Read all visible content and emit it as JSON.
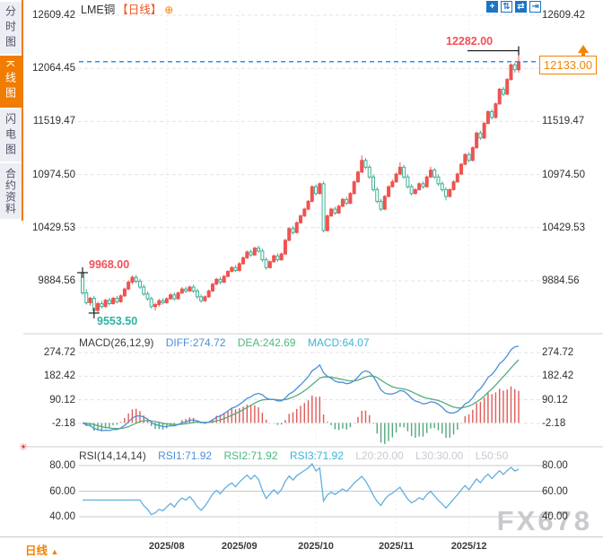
{
  "sidebar": {
    "tabs": [
      {
        "label": "分时图",
        "active": false
      },
      {
        "label": "K线图",
        "active": true
      },
      {
        "label": "闪电图",
        "active": false
      },
      {
        "label": "合约资料",
        "active": false
      }
    ]
  },
  "header": {
    "symbol": "LME铜",
    "period_tag": "【日线】",
    "add_glyph": "⊕"
  },
  "toolbar": {
    "icons": [
      {
        "name": "pan-crosshair-icon",
        "glyph": "+",
        "filled": true
      },
      {
        "name": "zoom-y-axis-icon",
        "glyph": "⇅",
        "filled": false
      },
      {
        "name": "zoom-x-axis-icon",
        "glyph": "⇄",
        "filled": true
      },
      {
        "name": "exit-restore-icon",
        "glyph": "⇥",
        "filled": false
      }
    ]
  },
  "price_pane": {
    "high_label": "12282.00",
    "open_label": "9968.00",
    "low_label": "9553.50",
    "current_label": "12133.00",
    "axis_labels": [
      "12609.42",
      "12064.45",
      "11519.47",
      "10974.50",
      "10429.53",
      "9884.56"
    ]
  },
  "macd_pane": {
    "name": "MACD(26,12,9)",
    "diff_label": "DIFF:274.72",
    "dea_label": "DEA:242.69",
    "macd_label": "MACD:64.07",
    "axis_labels": [
      "274.72",
      "182.42",
      "90.12",
      "-2.18"
    ]
  },
  "rsi_pane": {
    "name": "RSI(14,14,14)",
    "rsi1_label": "RSI1:71.92",
    "rsi2_label": "RSI2:71.92",
    "rsi3_label": "RSI3:71.92",
    "l20_label": "L20:20.00",
    "l30_label": "L30:30.00",
    "l50_label": "L50:50",
    "settings_glyph": "☀",
    "axis_labels": [
      "80.00",
      "60.00",
      "40.00"
    ]
  },
  "bottom_bar": {
    "period_label": "日线",
    "period_arrow": "▲"
  },
  "watermark": "FX678",
  "colors": {
    "accent_orange": "#f28500",
    "candle_up": "#ef5350",
    "candle_down": "#3fb095",
    "diff_line": "#4a8fd9",
    "dea_line": "#56ab7d",
    "hist_up": "#e05a56",
    "hist_down": "#52a87e",
    "rsi_line": "#5fb0e0",
    "current_line": "#2a8ff0",
    "grid": "#e3e3e3",
    "label_red": "#f1505a",
    "label_teal": "#2db3a0"
  },
  "chart_data": {
    "type": "candlestick",
    "title": "LME铜 日线",
    "interval": "daily",
    "x_tick_labels": [
      "2025/08",
      "2025/09",
      "2025/10",
      "2025/11",
      "2025/12"
    ],
    "x_tick_indices": [
      22,
      41,
      61,
      82,
      101
    ],
    "price_axis_ticks": [
      12609.42,
      12064.45,
      11519.47,
      10974.5,
      10429.53,
      9884.56
    ],
    "first_open": 9968.0,
    "lowest_low": 9553.5,
    "highest_high": 12282.0,
    "last_close": 12133.0,
    "candles_format": [
      "open",
      "high",
      "low",
      "close"
    ],
    "candles": [
      [
        9968,
        9990,
        9740,
        9760
      ],
      [
        9760,
        9800,
        9640,
        9660
      ],
      [
        9660,
        9720,
        9630,
        9705
      ],
      [
        9705,
        9730,
        9553.5,
        9580
      ],
      [
        9580,
        9670,
        9560,
        9650
      ],
      [
        9650,
        9680,
        9600,
        9620
      ],
      [
        9620,
        9700,
        9610,
        9685
      ],
      [
        9685,
        9710,
        9630,
        9650
      ],
      [
        9650,
        9720,
        9640,
        9705
      ],
      [
        9705,
        9730,
        9650,
        9670
      ],
      [
        9670,
        9745,
        9660,
        9730
      ],
      [
        9730,
        9815,
        9720,
        9800
      ],
      [
        9800,
        9890,
        9790,
        9870
      ],
      [
        9870,
        9940,
        9850,
        9920
      ],
      [
        9920,
        9945,
        9860,
        9880
      ],
      [
        9880,
        9905,
        9800,
        9820
      ],
      [
        9820,
        9845,
        9730,
        9750
      ],
      [
        9750,
        9775,
        9680,
        9700
      ],
      [
        9700,
        9720,
        9600,
        9620
      ],
      [
        9620,
        9660,
        9580,
        9640
      ],
      [
        9640,
        9700,
        9620,
        9680
      ],
      [
        9680,
        9705,
        9640,
        9660
      ],
      [
        9660,
        9715,
        9650,
        9700
      ],
      [
        9700,
        9760,
        9690,
        9740
      ],
      [
        9740,
        9765,
        9680,
        9700
      ],
      [
        9700,
        9775,
        9690,
        9760
      ],
      [
        9760,
        9820,
        9750,
        9800
      ],
      [
        9800,
        9825,
        9760,
        9780
      ],
      [
        9780,
        9835,
        9770,
        9820
      ],
      [
        9820,
        9845,
        9760,
        9780
      ],
      [
        9780,
        9805,
        9700,
        9720
      ],
      [
        9720,
        9745,
        9660,
        9680
      ],
      [
        9680,
        9735,
        9670,
        9720
      ],
      [
        9720,
        9795,
        9710,
        9780
      ],
      [
        9780,
        9865,
        9770,
        9850
      ],
      [
        9850,
        9915,
        9840,
        9900
      ],
      [
        9900,
        9925,
        9850,
        9870
      ],
      [
        9870,
        9945,
        9860,
        9930
      ],
      [
        9930,
        9995,
        9920,
        9980
      ],
      [
        9980,
        10035,
        9970,
        10020
      ],
      [
        10020,
        10045,
        9975,
        9990
      ],
      [
        9990,
        10075,
        9980,
        10060
      ],
      [
        10060,
        10135,
        10050,
        10120
      ],
      [
        10120,
        10195,
        10110,
        10180
      ],
      [
        10180,
        10205,
        10130,
        10150
      ],
      [
        10150,
        10235,
        10140,
        10220
      ],
      [
        10220,
        10245,
        10170,
        10190
      ],
      [
        10190,
        10215,
        10080,
        10100
      ],
      [
        10100,
        10125,
        10000,
        10020
      ],
      [
        10020,
        10095,
        10010,
        10080
      ],
      [
        10080,
        10155,
        10070,
        10140
      ],
      [
        10140,
        10165,
        10080,
        10100
      ],
      [
        10100,
        10175,
        10090,
        10160
      ],
      [
        10160,
        10315,
        10150,
        10300
      ],
      [
        10300,
        10435,
        10290,
        10420
      ],
      [
        10420,
        10445,
        10360,
        10380
      ],
      [
        10380,
        10495,
        10370,
        10480
      ],
      [
        10480,
        10565,
        10470,
        10550
      ],
      [
        10550,
        10635,
        10540,
        10620
      ],
      [
        10620,
        10715,
        10610,
        10700
      ],
      [
        10700,
        10865,
        10690,
        10850
      ],
      [
        10850,
        10875,
        10760,
        10780
      ],
      [
        10780,
        10895,
        10770,
        10880
      ],
      [
        10880,
        10905,
        10380,
        10400
      ],
      [
        10400,
        10565,
        10390,
        10550
      ],
      [
        10550,
        10635,
        10540,
        10620
      ],
      [
        10620,
        10645,
        10560,
        10580
      ],
      [
        10580,
        10665,
        10570,
        10650
      ],
      [
        10650,
        10735,
        10640,
        10720
      ],
      [
        10720,
        10745,
        10660,
        10680
      ],
      [
        10680,
        10795,
        10670,
        10780
      ],
      [
        10780,
        10915,
        10770,
        10900
      ],
      [
        10900,
        11015,
        10890,
        11000
      ],
      [
        11000,
        11170,
        10990,
        11120
      ],
      [
        11120,
        11145,
        11030,
        11050
      ],
      [
        11050,
        11075,
        10930,
        10950
      ],
      [
        10950,
        10975,
        10800,
        10820
      ],
      [
        10820,
        10845,
        10680,
        10700
      ],
      [
        10700,
        10725,
        10600,
        10620
      ],
      [
        10620,
        10765,
        10610,
        10750
      ],
      [
        10750,
        10865,
        10740,
        10850
      ],
      [
        10850,
        10925,
        10840,
        10900
      ],
      [
        10900,
        10995,
        10890,
        10980
      ],
      [
        10980,
        11100,
        10970,
        11050
      ],
      [
        11050,
        11075,
        10930,
        10950
      ],
      [
        10950,
        10975,
        10830,
        10850
      ],
      [
        10850,
        10875,
        10760,
        10780
      ],
      [
        10780,
        10835,
        10770,
        10820
      ],
      [
        10820,
        10895,
        10810,
        10880
      ],
      [
        10880,
        10905,
        10830,
        10850
      ],
      [
        10850,
        10965,
        10840,
        10950
      ],
      [
        10950,
        11055,
        10940,
        11020
      ],
      [
        11020,
        11045,
        10930,
        10950
      ],
      [
        10950,
        10975,
        10860,
        10880
      ],
      [
        10880,
        10905,
        10800,
        10820
      ],
      [
        10820,
        10845,
        10710,
        10750
      ],
      [
        10750,
        10835,
        10740,
        10820
      ],
      [
        10820,
        10915,
        10810,
        10900
      ],
      [
        10900,
        10995,
        10890,
        10980
      ],
      [
        10980,
        11095,
        10970,
        11080
      ],
      [
        11080,
        11195,
        11070,
        11180
      ],
      [
        11180,
        11205,
        11100,
        11120
      ],
      [
        11120,
        11265,
        11110,
        11250
      ],
      [
        11250,
        11415,
        11240,
        11400
      ],
      [
        11400,
        11425,
        11330,
        11350
      ],
      [
        11350,
        11515,
        11340,
        11500
      ],
      [
        11500,
        11635,
        11490,
        11620
      ],
      [
        11620,
        11645,
        11540,
        11560
      ],
      [
        11560,
        11715,
        11550,
        11700
      ],
      [
        11700,
        11865,
        11690,
        11850
      ],
      [
        11850,
        11875,
        11780,
        11800
      ],
      [
        11800,
        11965,
        11790,
        11950
      ],
      [
        11950,
        12115,
        11940,
        12100
      ],
      [
        12100,
        12125,
        12020,
        12050
      ],
      [
        12050,
        12282,
        12020,
        12133
      ]
    ],
    "indicators": {
      "macd": {
        "params": [
          26,
          12,
          9
        ],
        "diff": 274.72,
        "dea": 242.69,
        "macd": 64.07,
        "axis_ticks": [
          274.72,
          182.42,
          90.12,
          -2.18
        ]
      },
      "rsi": {
        "params": [
          14,
          14,
          14
        ],
        "rsi1": 71.92,
        "rsi2": 71.92,
        "rsi3": 71.92,
        "levels": {
          "l20": 20.0,
          "l30": 30.0,
          "l50": 50
        },
        "axis_ticks": [
          80.0,
          60.0,
          40.0
        ]
      }
    }
  }
}
